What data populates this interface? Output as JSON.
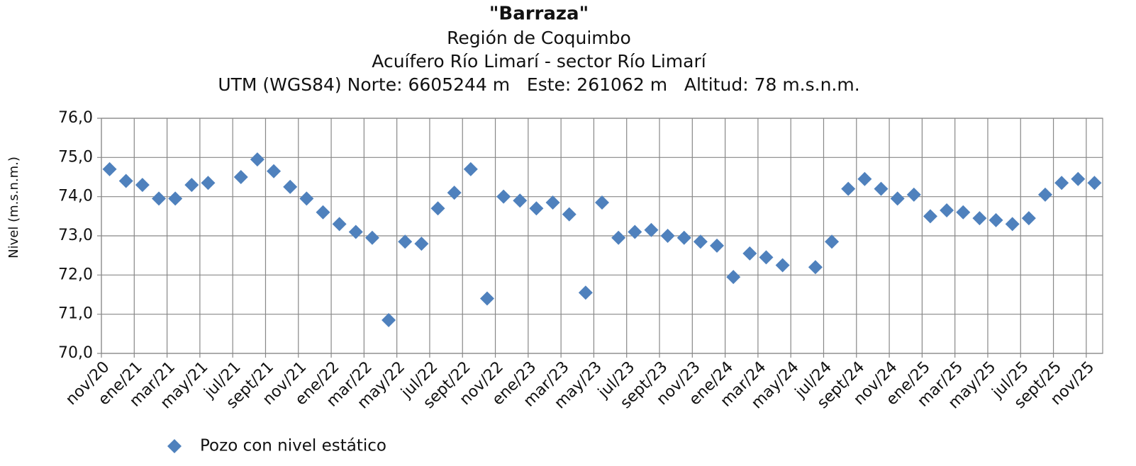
{
  "chart_data": {
    "type": "scatter",
    "title": "\"Barraza\"",
    "subtitles": [
      "Región de Coquimbo",
      "Acuífero Río Limarí - sector Río Limarí",
      "UTM (WGS84) Norte: 6605244 m   Este: 261062 m   Altitud: 78 m.s.n.m."
    ],
    "y_label": "Nivel (m.s.n.m.)",
    "categories": [
      "nov/20",
      null,
      "ene/21",
      null,
      "mar/21",
      null,
      "may/21",
      null,
      "jul/21",
      null,
      "sept/21",
      null,
      "nov/21",
      null,
      "ene/22",
      null,
      "mar/22",
      null,
      "may/22",
      null,
      "jul/22",
      null,
      "sept/22",
      null,
      "nov/22",
      null,
      "ene/23",
      null,
      "mar/23",
      null,
      "may/23",
      null,
      "jul/23",
      null,
      "sept/23",
      null,
      "nov/23",
      null,
      "ene/24",
      null,
      "mar/24",
      null,
      "may/24",
      null,
      "jul/24",
      null,
      "sept/24",
      null,
      "nov/24",
      null,
      "ene/25",
      null,
      "mar/25",
      null,
      "may/25",
      null,
      "jul/25",
      null,
      "sept/25",
      null,
      "nov/25"
    ],
    "series": [
      {
        "name": "Pozo con nivel estático",
        "color": "#4f81bd",
        "values": [
          74.7,
          74.4,
          74.3,
          73.95,
          73.95,
          74.3,
          74.35,
          null,
          74.5,
          74.95,
          74.65,
          74.25,
          73.95,
          73.6,
          73.3,
          73.1,
          72.95,
          70.85,
          72.85,
          72.8,
          73.7,
          74.1,
          74.7,
          71.4,
          74.0,
          73.9,
          73.7,
          73.85,
          73.55,
          71.55,
          73.85,
          72.95,
          73.1,
          73.15,
          73.0,
          72.95,
          72.85,
          72.75,
          71.95,
          72.55,
          72.45,
          72.25,
          null,
          72.2,
          72.85,
          74.2,
          74.45,
          74.2,
          73.95,
          74.05,
          73.5,
          73.65,
          73.6,
          73.45,
          73.4,
          73.3,
          73.45,
          74.05,
          74.35,
          74.45,
          74.35
        ]
      }
    ],
    "ylim": [
      70,
      76
    ],
    "yticks": [
      {
        "value": 70,
        "label": "70,0"
      },
      {
        "value": 71,
        "label": "71,0"
      },
      {
        "value": 72,
        "label": "72,0"
      },
      {
        "value": 73,
        "label": "73,0"
      },
      {
        "value": 74,
        "label": "74,0"
      },
      {
        "value": 75,
        "label": "75,0"
      },
      {
        "value": 76,
        "label": "76,0"
      }
    ],
    "grid": true,
    "legend": "bottom-left"
  }
}
